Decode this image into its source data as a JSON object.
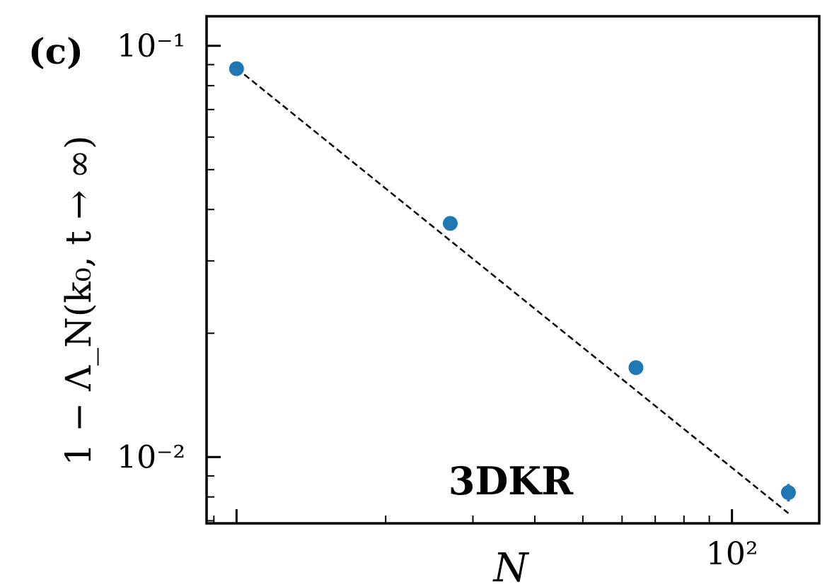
{
  "panel_label": "(c)",
  "chart_data": {
    "type": "scatter",
    "title": "",
    "annotation": "3DKR",
    "xlabel": "N",
    "ylabel": "1 − Λ_N(k₀, t → ∞)",
    "xscale": "log",
    "yscale": "log",
    "xlim": [
      8.7,
      150
    ],
    "ylim": [
      0.0069,
      0.118
    ],
    "grid": false,
    "x_ticks": [
      {
        "value": 100,
        "label": "10²"
      }
    ],
    "y_ticks": [
      {
        "value": 0.1,
        "label": "10⁻¹"
      },
      {
        "value": 0.01,
        "label": "10⁻²"
      }
    ],
    "series": [
      {
        "kind": "points",
        "color": "#1f77b4",
        "x": [
          10,
          27,
          64,
          130
        ],
        "y": [
          0.088,
          0.037,
          0.0165,
          0.0082
        ],
        "yerr": [
          0,
          0,
          0,
          0.0004
        ]
      },
      {
        "kind": "fit",
        "style": "dashed",
        "color": "#000000",
        "x": [
          10,
          130
        ],
        "y": [
          0.0882,
          0.0073
        ]
      }
    ]
  }
}
